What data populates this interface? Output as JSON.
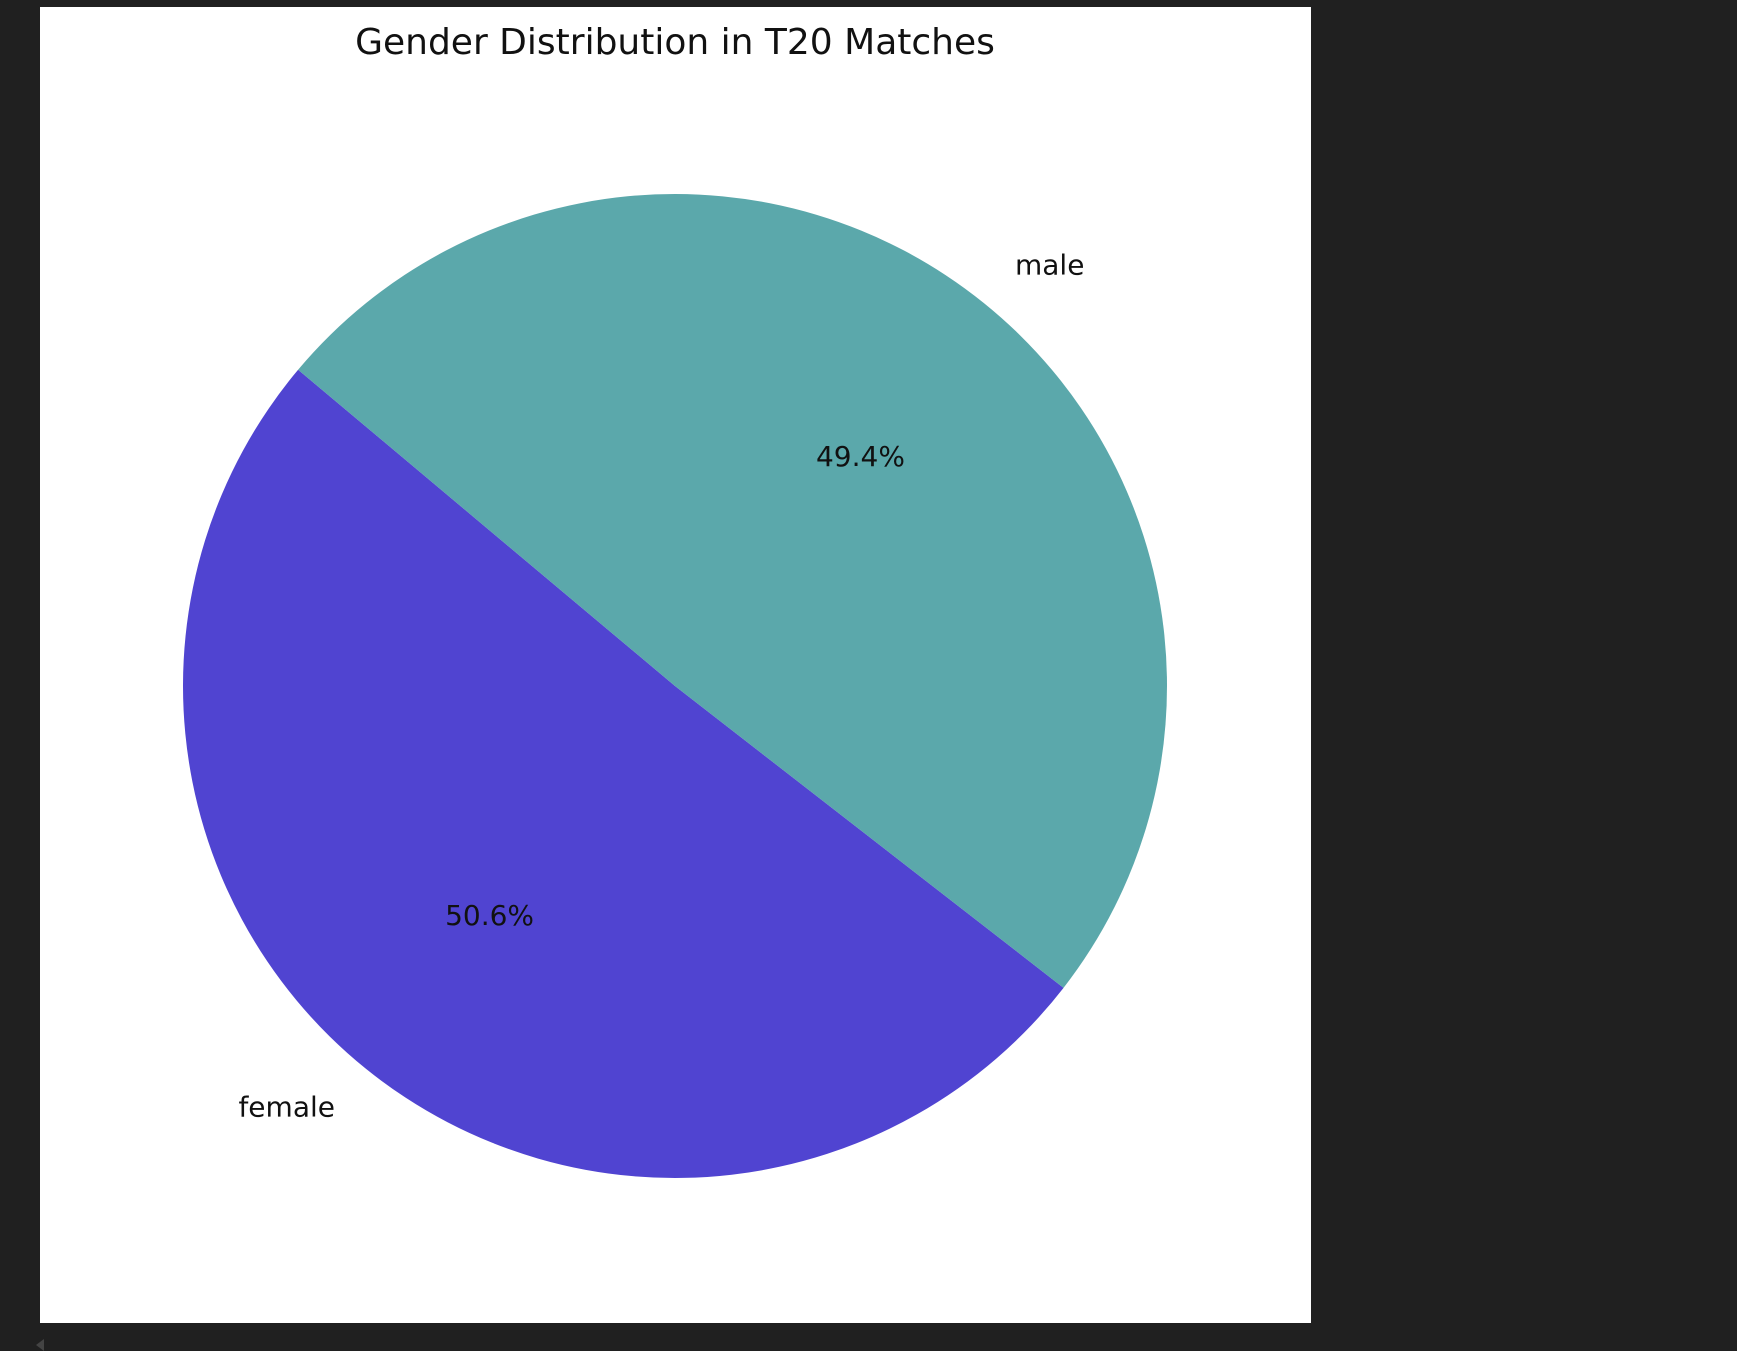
{
  "chart_data": {
    "type": "pie",
    "title": "Gender Distribution in T20 Matches",
    "categories": [
      "female",
      "male"
    ],
    "values": [
      50.6,
      49.4
    ],
    "percent_labels": [
      "50.6%",
      "49.4%"
    ],
    "colors": [
      "#5044d1",
      "#5ba8ab"
    ],
    "start_angle_deg": 140,
    "direction": "counterclockwise"
  }
}
